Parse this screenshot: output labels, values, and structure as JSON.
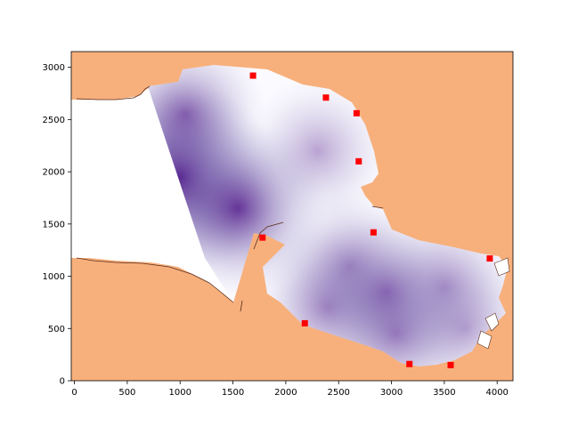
{
  "chart_data": {
    "type": "heatmap",
    "title": "",
    "xlabel": "",
    "ylabel": "",
    "xlim": [
      -30,
      4150
    ],
    "ylim": [
      0,
      3150
    ],
    "xticks": [
      0,
      500,
      1000,
      1500,
      2000,
      2500,
      3000,
      3500,
      4000
    ],
    "yticks": [
      0,
      500,
      1000,
      1500,
      2000,
      2500,
      3000
    ],
    "grid": false,
    "legend": "none",
    "colormap": "Purples",
    "land_color": "#f7b07c",
    "marker_color": "#ff0000",
    "coast_color": "#5a2a1a",
    "markers": [
      {
        "x": 1690,
        "y": 2920
      },
      {
        "x": 2380,
        "y": 2710
      },
      {
        "x": 2670,
        "y": 2560
      },
      {
        "x": 2690,
        "y": 2100
      },
      {
        "x": 1780,
        "y": 1370
      },
      {
        "x": 2830,
        "y": 1420
      },
      {
        "x": 2180,
        "y": 550
      },
      {
        "x": 3930,
        "y": 1170
      },
      {
        "x": 3170,
        "y": 160
      },
      {
        "x": 3560,
        "y": 150
      }
    ],
    "intensity_peaks": [
      {
        "x": 1000,
        "y": 1950,
        "value": 1.0
      },
      {
        "x": 1550,
        "y": 1650,
        "value": 0.75
      },
      {
        "x": 1050,
        "y": 2550,
        "value": 0.55
      },
      {
        "x": 2600,
        "y": 1100,
        "value": 0.45
      },
      {
        "x": 2400,
        "y": 700,
        "value": 0.45
      },
      {
        "x": 3500,
        "y": 900,
        "value": 0.45
      },
      {
        "x": 3050,
        "y": 450,
        "value": 0.5
      },
      {
        "x": 2950,
        "y": 850,
        "value": 0.45
      },
      {
        "x": 2300,
        "y": 2200,
        "value": 0.35
      },
      {
        "x": 3700,
        "y": 500,
        "value": 0.3
      }
    ]
  }
}
